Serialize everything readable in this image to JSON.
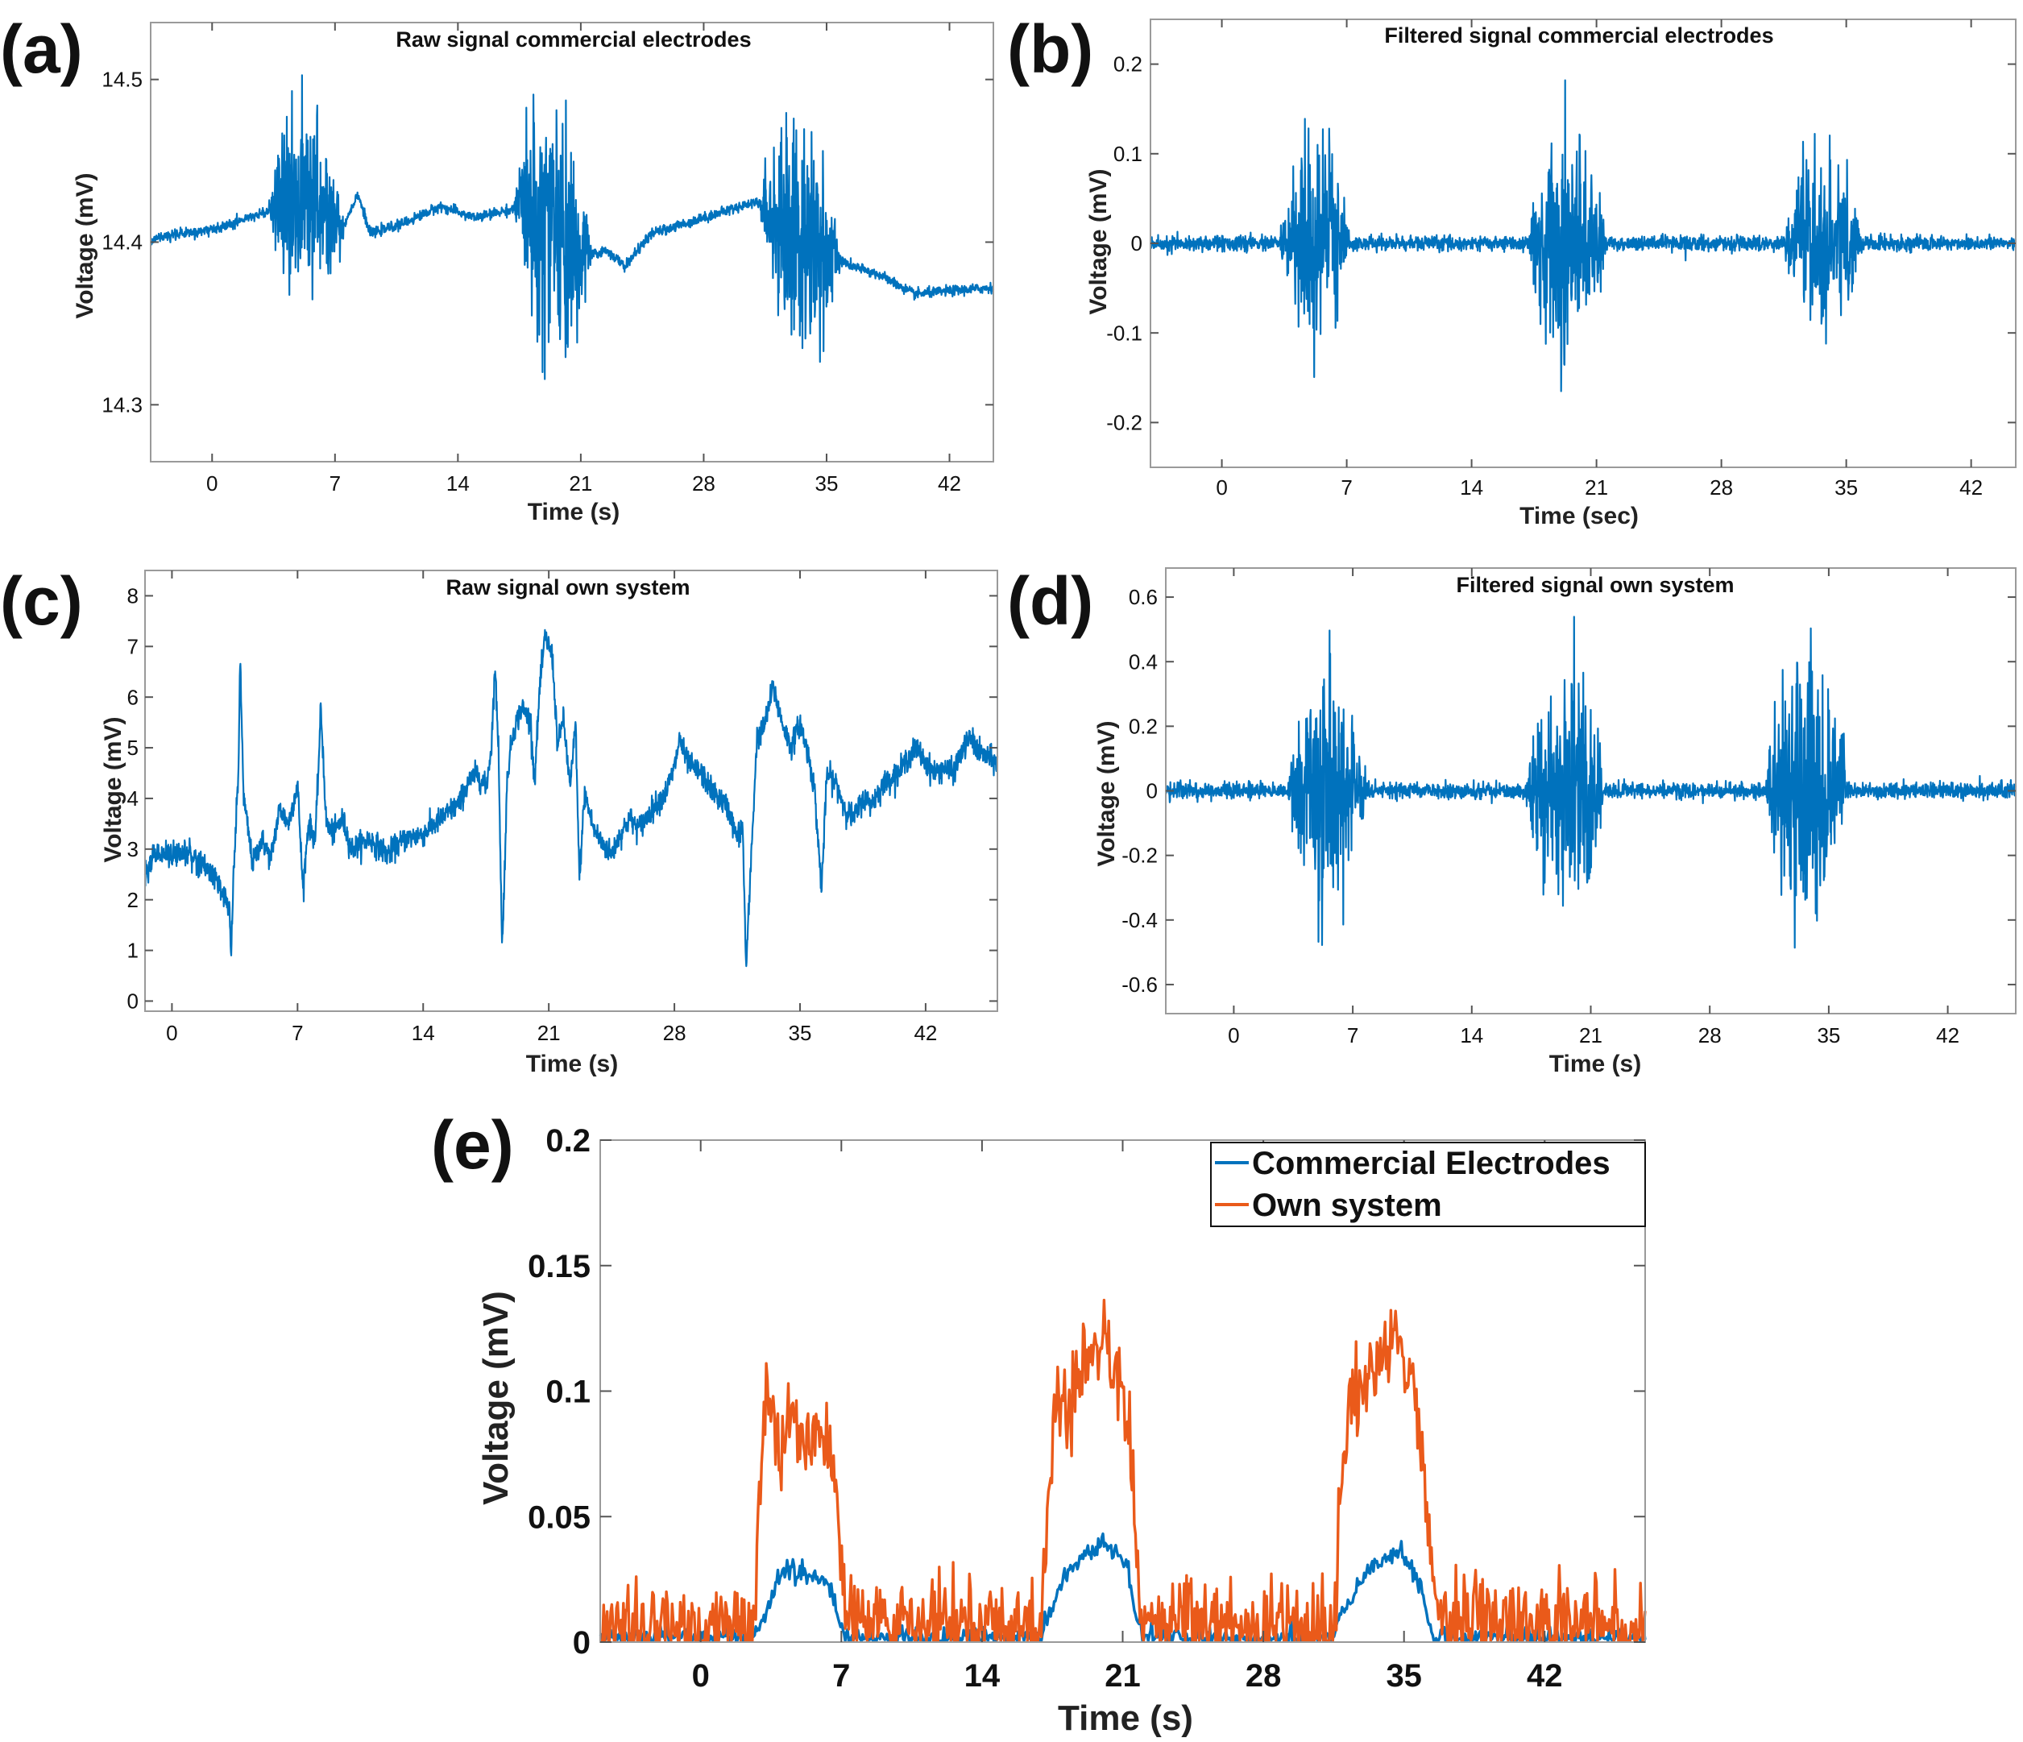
{
  "figure": {
    "colors": {
      "series_blue": "#0072BD",
      "series_orange": "#EA5A1A",
      "axis": "#9a9a9a",
      "text": "#111111"
    }
  },
  "chart_data": [
    {
      "id": "a",
      "panel_label": "(a)",
      "type": "line",
      "title": "Raw signal commercial electrodes",
      "xlabel": "Time (s)",
      "ylabel": "Voltage (mV)",
      "xlim": [
        -3.5,
        44.5
      ],
      "ylim": [
        14.265,
        14.535
      ],
      "xticks": [
        0,
        7,
        14,
        21,
        28,
        35,
        42
      ],
      "xtick_labels": [
        "0",
        "7",
        "14",
        "21",
        "28",
        "35",
        "42"
      ],
      "yticks": [
        14.3,
        14.4,
        14.5
      ],
      "ytick_labels": [
        "14.3",
        "14.4",
        "14.5"
      ],
      "series": [
        {
          "name": "Raw signal",
          "color": "#0072BD",
          "baseline": [
            [
              -3.5,
              14.402
            ],
            [
              0,
              14.408
            ],
            [
              3,
              14.418
            ],
            [
              4.5,
              14.42
            ],
            [
              7.5,
              14.41
            ],
            [
              8.3,
              14.43
            ],
            [
              9,
              14.405
            ],
            [
              11,
              14.412
            ],
            [
              13,
              14.422
            ],
            [
              15,
              14.415
            ],
            [
              17,
              14.42
            ],
            [
              18,
              14.425
            ],
            [
              21,
              14.39
            ],
            [
              22.5,
              14.395
            ],
            [
              23.5,
              14.385
            ],
            [
              25,
              14.405
            ],
            [
              28,
              14.415
            ],
            [
              31,
              14.425
            ],
            [
              33,
              14.405
            ],
            [
              35.5,
              14.39
            ],
            [
              36.5,
              14.385
            ],
            [
              38,
              14.38
            ],
            [
              40,
              14.368
            ],
            [
              42,
              14.37
            ],
            [
              44.5,
              14.372
            ]
          ],
          "bursts": [
            {
              "start": 3.2,
              "end": 7.5,
              "peak_amplitude": 0.085
            },
            {
              "start": 17.2,
              "end": 21.6,
              "peak_amplitude": 0.1
            },
            {
              "start": 31.2,
              "end": 35.8,
              "peak_amplitude": 0.095
            }
          ],
          "noise": 0.0015
        }
      ]
    },
    {
      "id": "b",
      "panel_label": "(b)",
      "type": "line",
      "title": "Filtered signal commercial electrodes",
      "xlabel": "Time (sec)",
      "ylabel": "Voltage (mV)",
      "xlim": [
        -4,
        44.5
      ],
      "ylim": [
        -0.25,
        0.25
      ],
      "xticks": [
        0,
        7,
        14,
        21,
        28,
        35,
        42
      ],
      "xtick_labels": [
        "0",
        "7",
        "14",
        "21",
        "28",
        "35",
        "42"
      ],
      "yticks": [
        -0.2,
        -0.1,
        0,
        0.1,
        0.2
      ],
      "ytick_labels": [
        "-0.2",
        "-0.1",
        "0",
        "0.1",
        "0.2"
      ],
      "series": [
        {
          "name": "Filtered signal",
          "color": "#0072BD",
          "baseline": [
            [
              -4,
              0
            ],
            [
              44.5,
              0
            ]
          ],
          "bursts": [
            {
              "start": 3.2,
              "end": 7.2,
              "peak_amplitude": 0.15
            },
            {
              "start": 17.2,
              "end": 21.5,
              "peak_amplitude": 0.18
            },
            {
              "start": 31.5,
              "end": 35.8,
              "peak_amplitude": 0.14
            }
          ],
          "noise": 0.004
        }
      ]
    },
    {
      "id": "c",
      "panel_label": "(c)",
      "type": "line",
      "title": "Raw signal   own system",
      "xlabel": "Time (s)",
      "ylabel": "Voltage (mV)",
      "xlim": [
        -1.5,
        46
      ],
      "ylim": [
        -0.2,
        8.5
      ],
      "xticks": [
        0,
        7,
        14,
        21,
        28,
        35,
        42
      ],
      "xtick_labels": [
        "0",
        "7",
        "14",
        "21",
        "28",
        "35",
        "42"
      ],
      "yticks": [
        0,
        1,
        2,
        3,
        4,
        5,
        6,
        7,
        8
      ],
      "ytick_labels": [
        "0",
        "1",
        "2",
        "3",
        "4",
        "5",
        "6",
        "7",
        "8"
      ],
      "series": [
        {
          "name": "Raw signal",
          "color": "#0072BD",
          "points": [
            [
              -1.5,
              2.5
            ],
            [
              -1,
              2.9
            ],
            [
              0,
              2.9
            ],
            [
              1,
              2.9
            ],
            [
              2,
              2.6
            ],
            [
              2.8,
              2.2
            ],
            [
              3.2,
              1.8
            ],
            [
              3.3,
              0.8
            ],
            [
              3.4,
              2.2
            ],
            [
              3.7,
              4.5
            ],
            [
              3.8,
              6.7
            ],
            [
              4,
              4
            ],
            [
              4.5,
              2.7
            ],
            [
              5,
              3.2
            ],
            [
              5.5,
              2.8
            ],
            [
              6,
              3.8
            ],
            [
              6.5,
              3.5
            ],
            [
              7,
              4.3
            ],
            [
              7.3,
              2.2
            ],
            [
              7.6,
              3.5
            ],
            [
              8,
              3.2
            ],
            [
              8.3,
              5.8
            ],
            [
              8.6,
              3.5
            ],
            [
              9,
              3.3
            ],
            [
              9.5,
              3.6
            ],
            [
              10,
              3
            ],
            [
              11,
              3.2
            ],
            [
              12,
              2.9
            ],
            [
              13,
              3.2
            ],
            [
              14,
              3.3
            ],
            [
              15,
              3.6
            ],
            [
              16,
              3.9
            ],
            [
              16.5,
              4.3
            ],
            [
              17,
              4.5
            ],
            [
              17.5,
              4.2
            ],
            [
              17.8,
              5
            ],
            [
              18,
              6.6
            ],
            [
              18.2,
              5
            ],
            [
              18.4,
              1
            ],
            [
              18.7,
              4.5
            ],
            [
              19,
              5.3
            ],
            [
              19.5,
              5.8
            ],
            [
              20,
              5.5
            ],
            [
              20.2,
              4.3
            ],
            [
              20.5,
              6.2
            ],
            [
              20.8,
              7.2
            ],
            [
              21.2,
              6.8
            ],
            [
              21.5,
              5
            ],
            [
              21.8,
              5.6
            ],
            [
              22.2,
              4.2
            ],
            [
              22.5,
              5.5
            ],
            [
              22.7,
              2.4
            ],
            [
              23,
              4.1
            ],
            [
              23.5,
              3.4
            ],
            [
              24,
              3.1
            ],
            [
              24.5,
              2.9
            ],
            [
              25,
              3.3
            ],
            [
              25.5,
              3.6
            ],
            [
              26,
              3.4
            ],
            [
              27,
              3.9
            ],
            [
              27.5,
              4.1
            ],
            [
              28,
              4.6
            ],
            [
              28.3,
              5.2
            ],
            [
              28.6,
              4.8
            ],
            [
              29,
              4.6
            ],
            [
              29.5,
              4.5
            ],
            [
              30,
              4.2
            ],
            [
              30.5,
              4
            ],
            [
              31,
              3.8
            ],
            [
              31.5,
              3.2
            ],
            [
              31.8,
              3.5
            ],
            [
              32,
              0.6
            ],
            [
              32.3,
              3
            ],
            [
              32.6,
              5.2
            ],
            [
              33,
              5.4
            ],
            [
              33.5,
              6.2
            ],
            [
              34,
              5.5
            ],
            [
              34.5,
              5
            ],
            [
              35,
              5.5
            ],
            [
              35.5,
              4.8
            ],
            [
              35.8,
              4.2
            ],
            [
              36.2,
              2.2
            ],
            [
              36.5,
              4.5
            ],
            [
              37,
              4.3
            ],
            [
              37.5,
              3.8
            ],
            [
              38,
              3.6
            ],
            [
              38.5,
              4
            ],
            [
              39,
              3.9
            ],
            [
              39.5,
              4.2
            ],
            [
              40,
              4.4
            ],
            [
              40.5,
              4.5
            ],
            [
              41,
              4.8
            ],
            [
              41.5,
              5
            ],
            [
              42,
              4.7
            ],
            [
              42.5,
              4.5
            ],
            [
              43,
              4.6
            ],
            [
              43.5,
              4.5
            ],
            [
              44,
              4.9
            ],
            [
              44.5,
              5.2
            ],
            [
              45,
              4.9
            ],
            [
              45.5,
              4.8
            ],
            [
              46,
              4.7
            ]
          ],
          "noise": 0.12
        }
      ]
    },
    {
      "id": "d",
      "panel_label": "(d)",
      "type": "line",
      "title": "Filtered signal own system",
      "xlabel": "Time (s)",
      "ylabel": "Voltage (mV)",
      "xlim": [
        -4,
        46
      ],
      "ylim": [
        -0.69,
        0.69
      ],
      "xticks": [
        0,
        7,
        14,
        21,
        28,
        35,
        42
      ],
      "xtick_labels": [
        "0",
        "7",
        "14",
        "21",
        "28",
        "35",
        "42"
      ],
      "yticks": [
        -0.6,
        -0.4,
        -0.2,
        0,
        0.2,
        0.4,
        0.6
      ],
      "ytick_labels": [
        "-0.6",
        "-0.4",
        "-0.2",
        "0",
        "0.2",
        "0.4",
        "0.6"
      ],
      "series": [
        {
          "name": "Filtered signal",
          "color": "#0072BD",
          "baseline": [
            [
              -4,
              0
            ],
            [
              46,
              0
            ]
          ],
          "bursts": [
            {
              "start": 3.2,
              "end": 7.8,
              "peak_amplitude": 0.5
            },
            {
              "start": 17.2,
              "end": 21.8,
              "peak_amplitude": 0.55
            },
            {
              "start": 31.3,
              "end": 36.2,
              "peak_amplitude": 0.55
            }
          ],
          "noise": 0.012
        }
      ]
    },
    {
      "id": "e",
      "panel_label": "(e)",
      "type": "line",
      "title": "",
      "xlabel": "Time (s)",
      "ylabel": "Voltage (mV)",
      "xlim": [
        -5,
        47
      ],
      "ylim": [
        0,
        0.2
      ],
      "xticks": [
        0,
        7,
        14,
        21,
        28,
        35,
        42
      ],
      "xtick_labels": [
        "0",
        "7",
        "14",
        "21",
        "28",
        "35",
        "42"
      ],
      "yticks": [
        0,
        0.05,
        0.1,
        0.15,
        0.2
      ],
      "ytick_labels": [
        "0",
        "0.05",
        "0.1",
        "0.15",
        "0.2"
      ],
      "legend": {
        "position": "top-right",
        "entries": [
          "Commercial Electrodes",
          "Own system"
        ]
      },
      "series": [
        {
          "name": "Commercial Electrodes",
          "color": "#0072BD",
          "points": [
            [
              -5,
              0.002
            ],
            [
              2.6,
              0.002
            ],
            [
              3,
              0.006
            ],
            [
              3.5,
              0.018
            ],
            [
              4,
              0.028
            ],
            [
              4.5,
              0.03
            ],
            [
              5,
              0.027
            ],
            [
              6,
              0.025
            ],
            [
              6.5,
              0.02
            ],
            [
              6.8,
              0.012
            ],
            [
              7.2,
              0.002
            ],
            [
              17,
              0.002
            ],
            [
              17.4,
              0.01
            ],
            [
              18,
              0.025
            ],
            [
              19,
              0.033
            ],
            [
              20,
              0.04
            ],
            [
              20.5,
              0.036
            ],
            [
              21.2,
              0.03
            ],
            [
              21.6,
              0.014
            ],
            [
              22,
              0.002
            ],
            [
              31.5,
              0.002
            ],
            [
              32,
              0.012
            ],
            [
              33,
              0.026
            ],
            [
              34,
              0.033
            ],
            [
              34.7,
              0.036
            ],
            [
              35.5,
              0.03
            ],
            [
              36,
              0.015
            ],
            [
              36.4,
              0.002
            ],
            [
              47,
              0.002
            ]
          ],
          "noise": 0.002
        },
        {
          "name": "Own system",
          "color": "#EA5A1A",
          "points": [
            [
              -5,
              0.006
            ],
            [
              1.5,
              0.005
            ],
            [
              2.6,
              0.004
            ],
            [
              3,
              0.06
            ],
            [
              3.3,
              0.1
            ],
            [
              4,
              0.07
            ],
            [
              4.5,
              0.09
            ],
            [
              5,
              0.082
            ],
            [
              6,
              0.078
            ],
            [
              6.5,
              0.07
            ],
            [
              7,
              0.04
            ],
            [
              7.3,
              0.012
            ],
            [
              8,
              0.006
            ],
            [
              17,
              0.005
            ],
            [
              17.3,
              0.05
            ],
            [
              17.6,
              0.1
            ],
            [
              18.5,
              0.095
            ],
            [
              19.5,
              0.115
            ],
            [
              20,
              0.12
            ],
            [
              20.5,
              0.115
            ],
            [
              21.2,
              0.1
            ],
            [
              21.6,
              0.05
            ],
            [
              22,
              0.008
            ],
            [
              31.5,
              0.005
            ],
            [
              31.8,
              0.06
            ],
            [
              32.3,
              0.095
            ],
            [
              33,
              0.1
            ],
            [
              34,
              0.115
            ],
            [
              34.7,
              0.12
            ],
            [
              35.5,
              0.11
            ],
            [
              36,
              0.06
            ],
            [
              36.5,
              0.02
            ],
            [
              37.2,
              0.008
            ],
            [
              47,
              0.006
            ]
          ],
          "noise": 0.009
        }
      ]
    }
  ]
}
